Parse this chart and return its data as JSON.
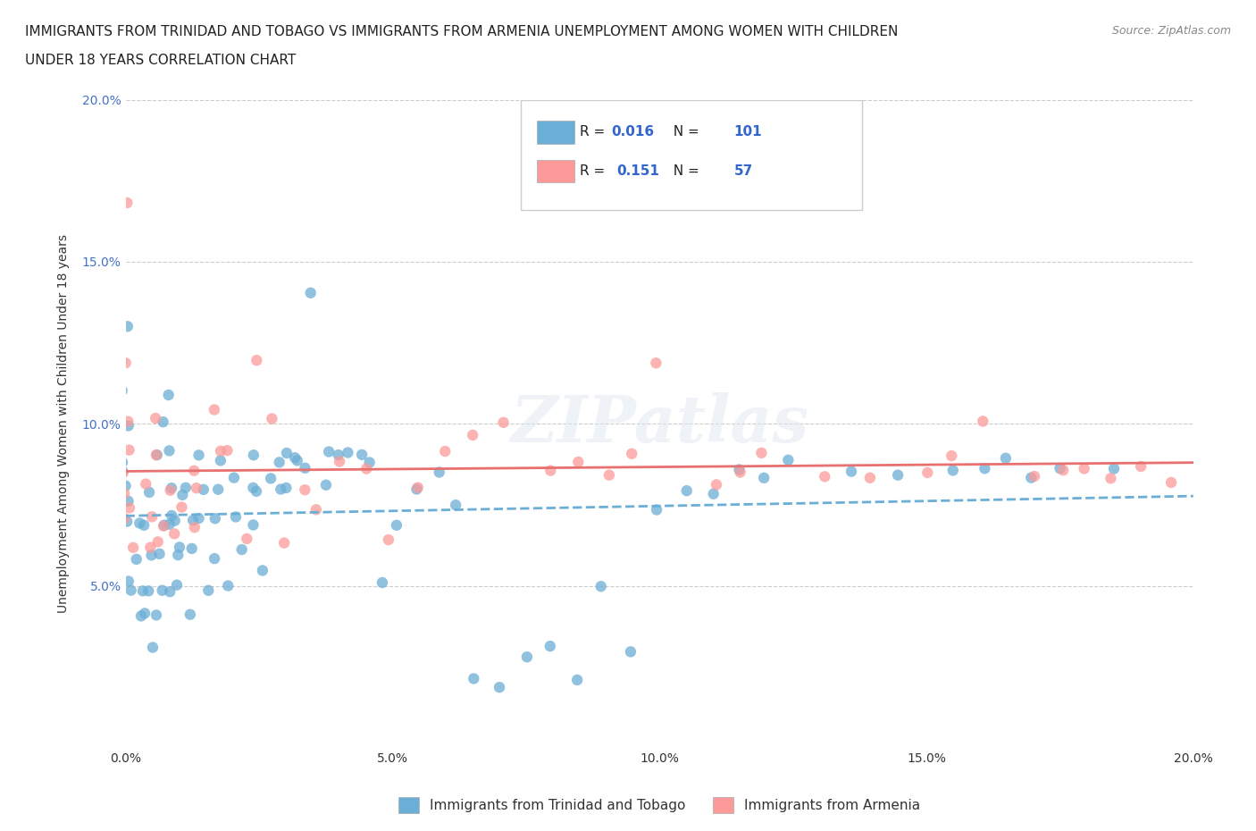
{
  "title_line1": "IMMIGRANTS FROM TRINIDAD AND TOBAGO VS IMMIGRANTS FROM ARMENIA UNEMPLOYMENT AMONG WOMEN WITH CHILDREN",
  "title_line2": "UNDER 18 YEARS CORRELATION CHART",
  "source": "Source: ZipAtlas.com",
  "xlabel": "",
  "ylabel": "Unemployment Among Women with Children Under 18 years",
  "xlim": [
    0.0,
    0.2
  ],
  "ylim": [
    0.0,
    0.2
  ],
  "xticks": [
    0.0,
    0.05,
    0.1,
    0.15,
    0.2
  ],
  "yticks": [
    0.0,
    0.05,
    0.1,
    0.15,
    0.2
  ],
  "xtick_labels": [
    "0.0%",
    "5.0%",
    "10.0%",
    "15.0%",
    "20.0%"
  ],
  "ytick_labels": [
    "",
    "5.0%",
    "10.0%",
    "15.0%",
    "20.0%"
  ],
  "color_tt": "#6baed6",
  "color_arm": "#fb9a99",
  "color_tt_line": "#6baed6",
  "color_arm_line": "#e87070",
  "R_tt": 0.016,
  "N_tt": 101,
  "R_arm": 0.151,
  "N_arm": 57,
  "watermark": "ZIPatlas",
  "legend_label_tt": "Immigrants from Trinidad and Tobago",
  "legend_label_arm": "Immigrants from Armenia",
  "tt_x": [
    0.0,
    0.0,
    0.0,
    0.0,
    0.0,
    0.0,
    0.0,
    0.0,
    0.0,
    0.0,
    0.0,
    0.002,
    0.002,
    0.002,
    0.002,
    0.003,
    0.003,
    0.004,
    0.004,
    0.004,
    0.005,
    0.005,
    0.006,
    0.006,
    0.006,
    0.007,
    0.007,
    0.007,
    0.008,
    0.008,
    0.008,
    0.008,
    0.009,
    0.009,
    0.009,
    0.01,
    0.01,
    0.01,
    0.011,
    0.011,
    0.012,
    0.012,
    0.013,
    0.013,
    0.014,
    0.015,
    0.015,
    0.016,
    0.017,
    0.018,
    0.018,
    0.02,
    0.02,
    0.021,
    0.022,
    0.023,
    0.023,
    0.024,
    0.025,
    0.025,
    0.027,
    0.028,
    0.029,
    0.03,
    0.031,
    0.032,
    0.033,
    0.034,
    0.035,
    0.037,
    0.039,
    0.04,
    0.042,
    0.044,
    0.046,
    0.049,
    0.05,
    0.054,
    0.058,
    0.062,
    0.065,
    0.07,
    0.075,
    0.08,
    0.085,
    0.09,
    0.095,
    0.1,
    0.105,
    0.11,
    0.115,
    0.12,
    0.125,
    0.135,
    0.145,
    0.155,
    0.16,
    0.165,
    0.17,
    0.175,
    0.185
  ],
  "tt_y": [
    0.05,
    0.06,
    0.07,
    0.075,
    0.08,
    0.085,
    0.09,
    0.1,
    0.11,
    0.12,
    0.13,
    0.04,
    0.05,
    0.06,
    0.07,
    0.05,
    0.07,
    0.04,
    0.06,
    0.08,
    0.03,
    0.05,
    0.04,
    0.06,
    0.09,
    0.05,
    0.07,
    0.1,
    0.05,
    0.07,
    0.08,
    0.11,
    0.06,
    0.07,
    0.09,
    0.05,
    0.07,
    0.08,
    0.06,
    0.08,
    0.04,
    0.07,
    0.06,
    0.09,
    0.07,
    0.05,
    0.08,
    0.07,
    0.06,
    0.08,
    0.09,
    0.05,
    0.07,
    0.085,
    0.06,
    0.08,
    0.09,
    0.07,
    0.055,
    0.08,
    0.085,
    0.09,
    0.08,
    0.09,
    0.08,
    0.09,
    0.09,
    0.085,
    0.14,
    0.08,
    0.09,
    0.09,
    0.09,
    0.09,
    0.09,
    0.05,
    0.07,
    0.08,
    0.085,
    0.075,
    0.02,
    0.02,
    0.03,
    0.03,
    0.02,
    0.05,
    0.03,
    0.075,
    0.08,
    0.08,
    0.085,
    0.085,
    0.09,
    0.085,
    0.085,
    0.085,
    0.085,
    0.09,
    0.085,
    0.085,
    0.085
  ],
  "arm_x": [
    0.0,
    0.0,
    0.0,
    0.0,
    0.0,
    0.0,
    0.0,
    0.0,
    0.002,
    0.003,
    0.004,
    0.005,
    0.005,
    0.006,
    0.007,
    0.008,
    0.009,
    0.01,
    0.011,
    0.012,
    0.013,
    0.014,
    0.016,
    0.018,
    0.02,
    0.022,
    0.025,
    0.027,
    0.03,
    0.033,
    0.035,
    0.04,
    0.045,
    0.05,
    0.055,
    0.06,
    0.065,
    0.07,
    0.08,
    0.085,
    0.09,
    0.095,
    0.1,
    0.11,
    0.115,
    0.12,
    0.13,
    0.14,
    0.15,
    0.155,
    0.16,
    0.17,
    0.175,
    0.18,
    0.185,
    0.19,
    0.195
  ],
  "arm_y": [
    0.07,
    0.075,
    0.08,
    0.085,
    0.09,
    0.1,
    0.12,
    0.17,
    0.06,
    0.08,
    0.07,
    0.06,
    0.09,
    0.1,
    0.065,
    0.07,
    0.08,
    0.065,
    0.075,
    0.085,
    0.07,
    0.08,
    0.105,
    0.09,
    0.09,
    0.065,
    0.12,
    0.1,
    0.065,
    0.08,
    0.075,
    0.09,
    0.085,
    0.065,
    0.08,
    0.09,
    0.095,
    0.1,
    0.085,
    0.09,
    0.085,
    0.09,
    0.12,
    0.08,
    0.085,
    0.09,
    0.085,
    0.085,
    0.085,
    0.09,
    0.1,
    0.085,
    0.085,
    0.085,
    0.085,
    0.085,
    0.08
  ]
}
